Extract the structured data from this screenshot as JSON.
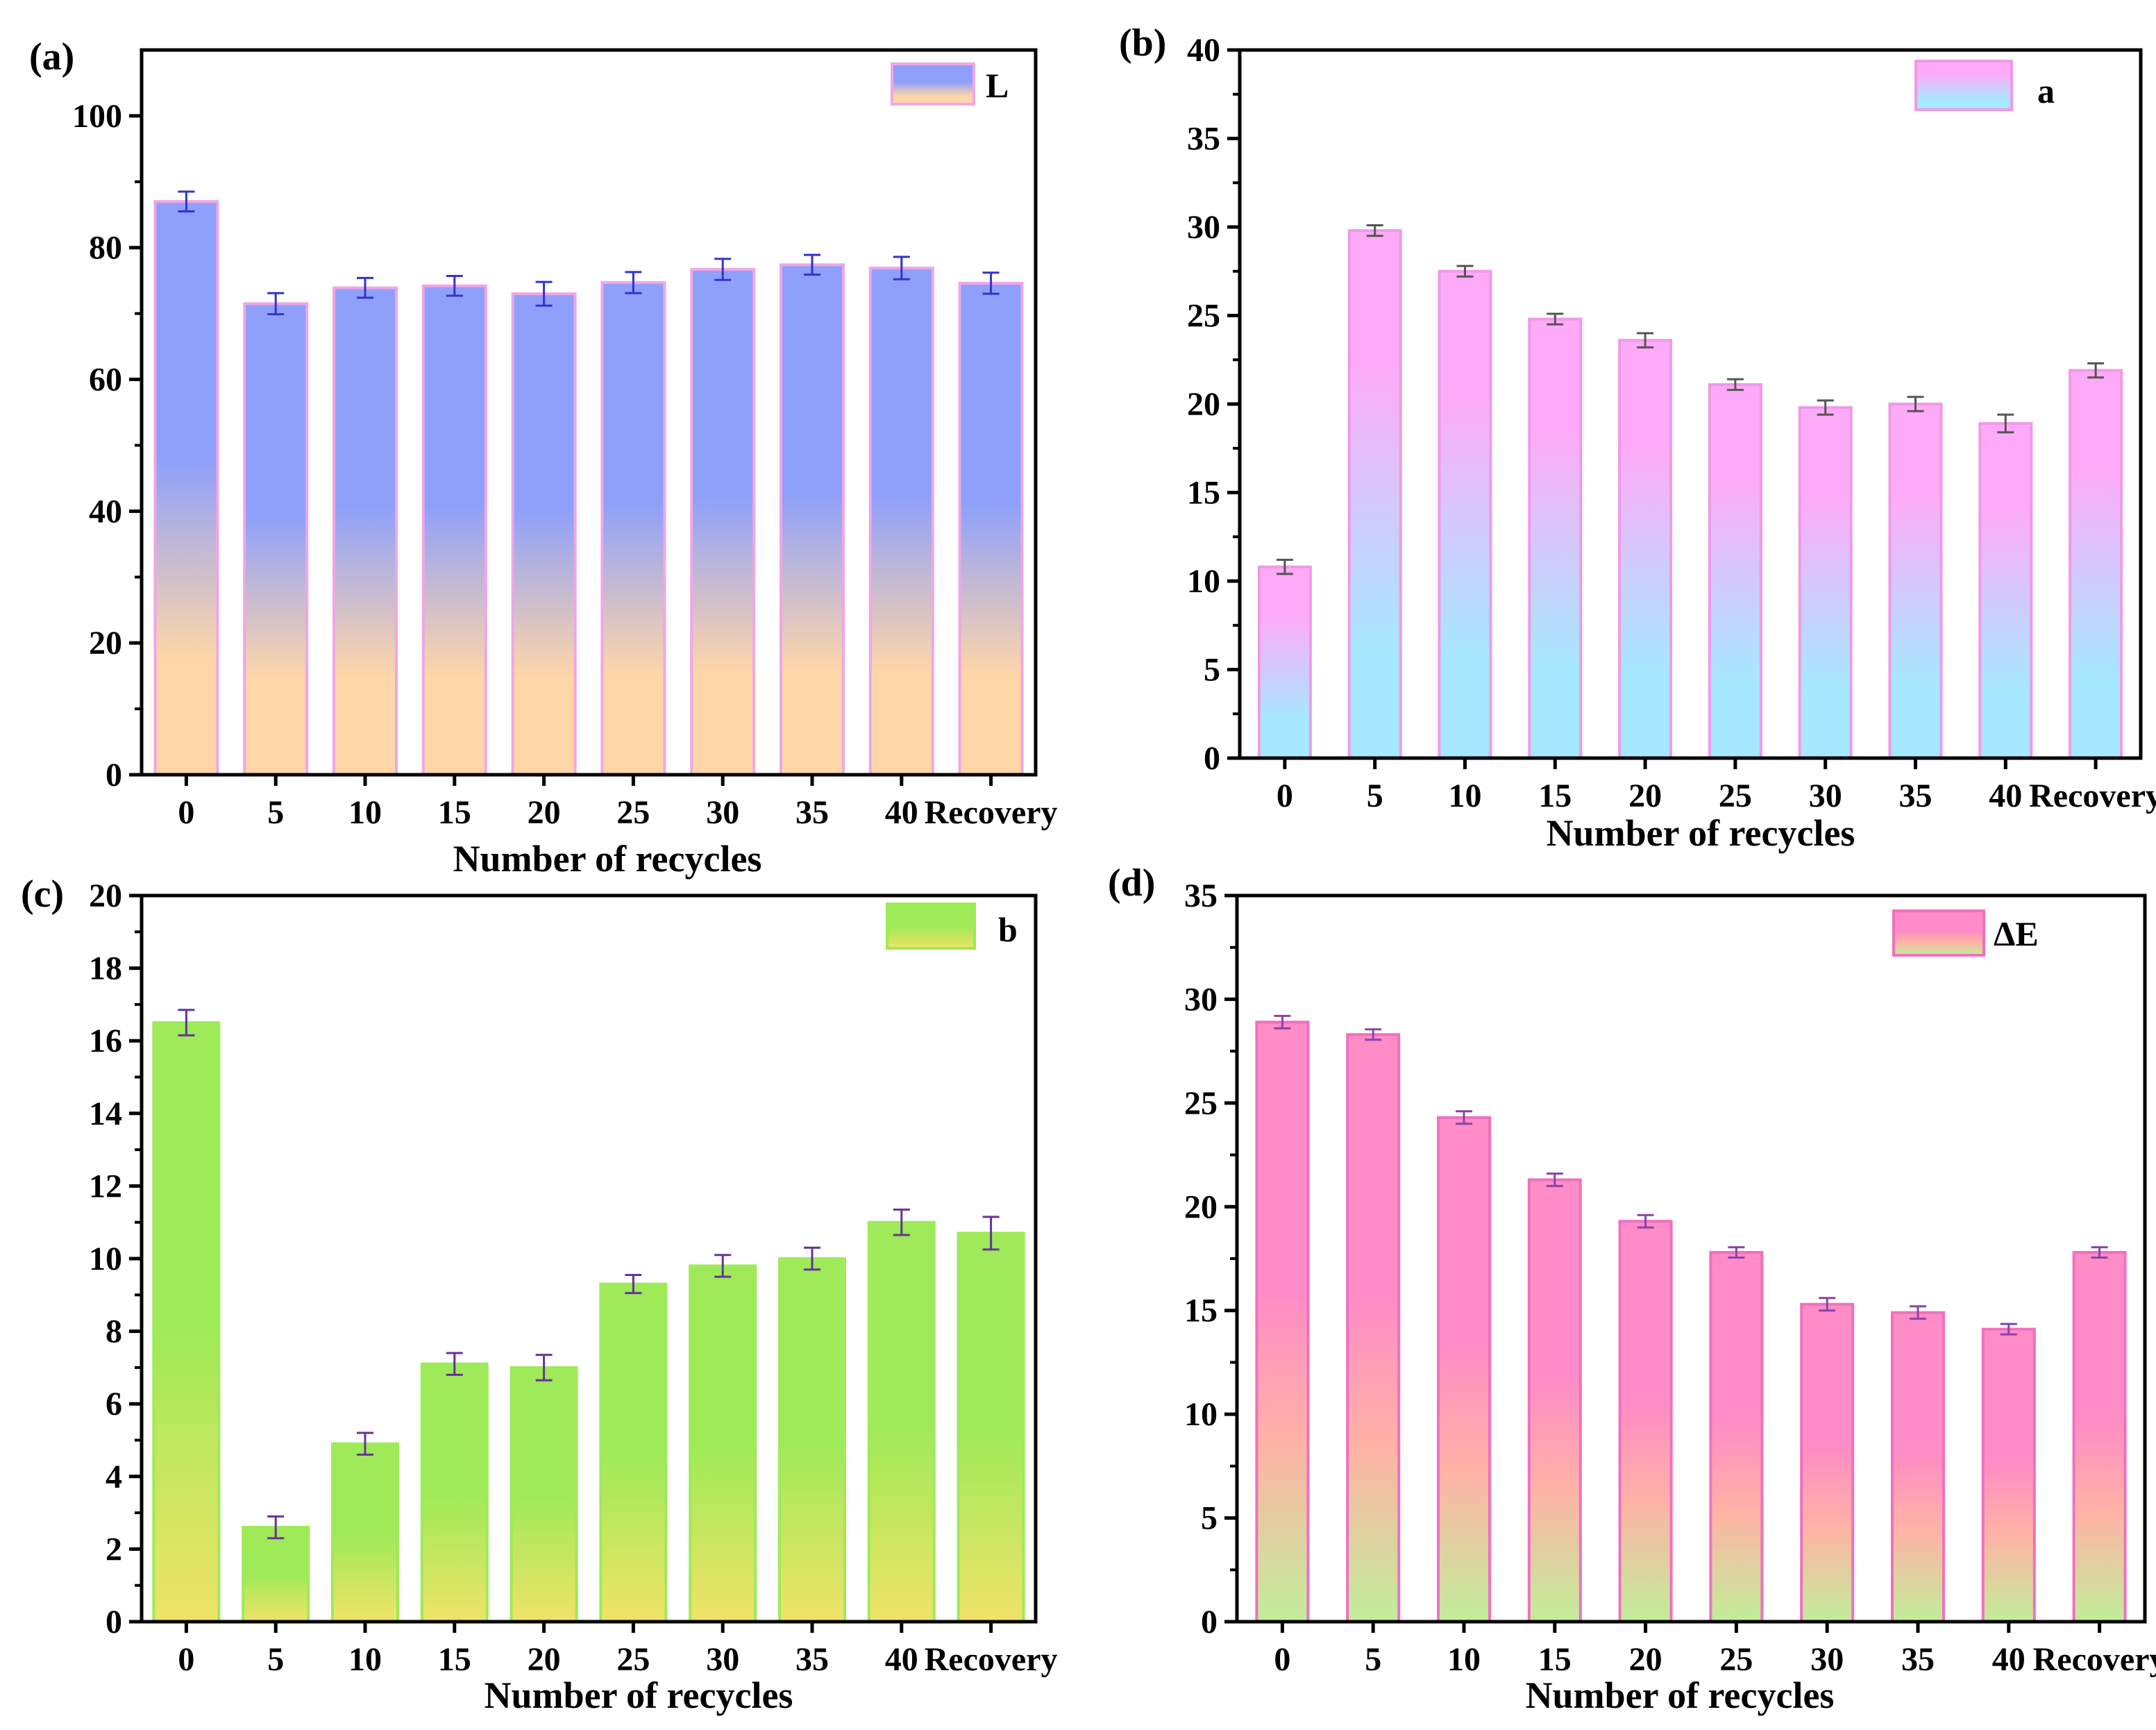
{
  "chart_data": [
    {
      "panel": "(a)",
      "type": "bar",
      "title": "",
      "xlabel": "Number of recycles",
      "ylabel": "",
      "categories": [
        "0",
        "5",
        "10",
        "15",
        "20",
        "25",
        "30",
        "35",
        "40",
        "Recovery"
      ],
      "series": [
        {
          "name": "L",
          "values": [
            87.0,
            71.5,
            73.9,
            74.2,
            73.0,
            74.7,
            76.7,
            77.4,
            76.9,
            74.6
          ],
          "errors": [
            1.5,
            1.6,
            1.5,
            1.5,
            1.8,
            1.6,
            1.6,
            1.5,
            1.7,
            1.6
          ]
        }
      ],
      "ylim": [
        0,
        110
      ],
      "yticks": [
        0,
        20,
        40,
        60,
        80,
        100
      ],
      "ytick_labels": [
        "0",
        "20",
        "40",
        "60",
        "80",
        "100"
      ],
      "legend_position": "top-right",
      "colors": {
        "top": "#8FA0FA",
        "bottom": "#FFD6A8",
        "edge": "#F0A6E6",
        "error": "#3333CC"
      }
    },
    {
      "panel": "(b)",
      "type": "bar",
      "title": "",
      "xlabel": "Number of recycles",
      "ylabel": "",
      "categories": [
        "0",
        "5",
        "10",
        "15",
        "20",
        "25",
        "30",
        "35",
        "40",
        "Recovery"
      ],
      "series": [
        {
          "name": "a",
          "values": [
            10.8,
            29.8,
            27.5,
            24.8,
            23.6,
            21.1,
            19.8,
            20.0,
            18.9,
            21.9
          ],
          "errors": [
            0.4,
            0.3,
            0.3,
            0.3,
            0.4,
            0.3,
            0.4,
            0.4,
            0.5,
            0.4
          ]
        }
      ],
      "ylim": [
        0,
        40
      ],
      "yticks": [
        0,
        5,
        10,
        15,
        20,
        25,
        30,
        35,
        40
      ],
      "ytick_labels": [
        "0",
        "5",
        "10",
        "15",
        "20",
        "25",
        "30",
        "35",
        "40"
      ],
      "legend_position": "top-right",
      "colors": {
        "top": "#FFAAF8",
        "bottom": "#A6E8FF",
        "edge": "#F09AE6",
        "error": "#555555"
      }
    },
    {
      "panel": "(c)",
      "type": "bar",
      "title": "",
      "xlabel": "Number of recycles",
      "ylabel": "",
      "categories": [
        "0",
        "5",
        "10",
        "15",
        "20",
        "25",
        "30",
        "35",
        "40",
        "Recovery"
      ],
      "series": [
        {
          "name": "b",
          "values": [
            16.5,
            2.6,
            4.9,
            7.1,
            7.0,
            9.3,
            9.8,
            10.0,
            11.0,
            10.7
          ],
          "errors": [
            0.35,
            0.3,
            0.3,
            0.3,
            0.35,
            0.25,
            0.3,
            0.3,
            0.35,
            0.45
          ]
        }
      ],
      "ylim": [
        0,
        20
      ],
      "yticks": [
        0,
        2,
        4,
        6,
        8,
        10,
        12,
        14,
        16,
        18,
        20
      ],
      "ytick_labels": [
        "0",
        "2",
        "4",
        "6",
        "8",
        "10",
        "12",
        "14",
        "16",
        "18",
        "20"
      ],
      "legend_position": "top-right",
      "colors": {
        "top": "#9EEA58",
        "bottom": "#F0E368",
        "edge": "#9EEA58",
        "error": "#663399"
      }
    },
    {
      "panel": "(d)",
      "type": "bar",
      "title": "",
      "xlabel": "Number of recycles",
      "ylabel": "",
      "categories": [
        "0",
        "5",
        "10",
        "15",
        "20",
        "25",
        "30",
        "35",
        "40",
        "Recovery"
      ],
      "series": [
        {
          "name": "ΔE",
          "values": [
            28.9,
            28.3,
            24.3,
            21.3,
            19.3,
            17.8,
            15.3,
            14.9,
            14.1,
            17.8
          ],
          "errors": [
            0.3,
            0.25,
            0.3,
            0.3,
            0.3,
            0.25,
            0.3,
            0.3,
            0.25,
            0.25
          ]
        }
      ],
      "ylim": [
        0,
        35
      ],
      "yticks": [
        0,
        5,
        10,
        15,
        20,
        25,
        30,
        35
      ],
      "ytick_labels": [
        "0",
        "5",
        "10",
        "15",
        "20",
        "25",
        "30",
        "35"
      ],
      "legend_position": "top-right",
      "colors": {
        "top": "#FF8CC6",
        "mid": "#FFB2A6",
        "bottom": "#C2EE9A",
        "edge": "#F070C0",
        "error": "#8844AA"
      }
    }
  ]
}
